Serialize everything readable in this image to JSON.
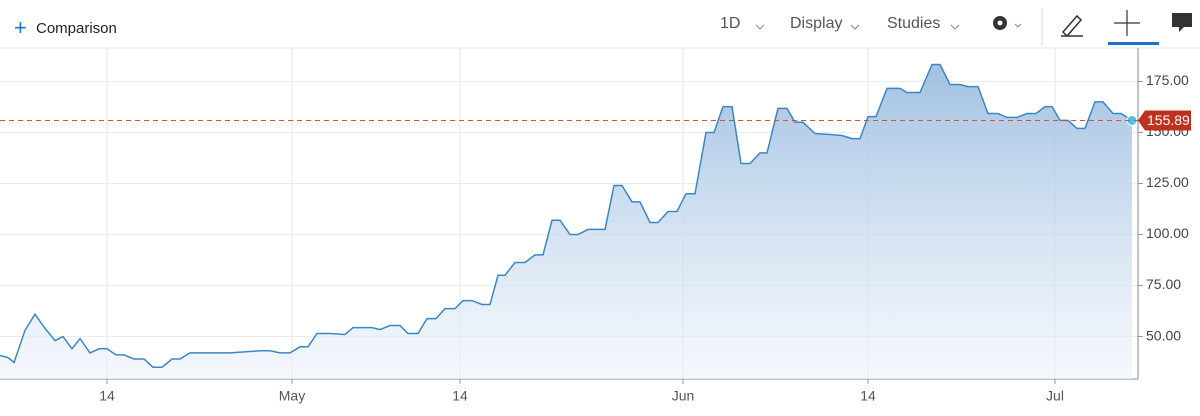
{
  "toolbar": {
    "comparison": "Comparison",
    "interval": "1D",
    "display": "Display",
    "studies": "Studies"
  },
  "chart_data": {
    "type": "line",
    "color": "#3a87c6",
    "area": true,
    "grid": true,
    "x": [
      0,
      0.8,
      1.4,
      2.5,
      3.5,
      4.5,
      5.5,
      6.3,
      7.2,
      8,
      9,
      9.9,
      10.7,
      11.6,
      12.4,
      13.4,
      14.4,
      15.3,
      16.2,
      17.2,
      18,
      19,
      23,
      26,
      27,
      28,
      29,
      30,
      30.8,
      31.7,
      33,
      34.5,
      35.3,
      37.2,
      38,
      39,
      40,
      40.8,
      41.8,
      42.7,
      43.6,
      44.5,
      45.5,
      46.3,
      47.2,
      48.2,
      49,
      49.8,
      50.5,
      51.5,
      52.5,
      53.5,
      54.3,
      55.2,
      56,
      57,
      57.8,
      58.8,
      60.5,
      61.4,
      62.2,
      63.2,
      64,
      65,
      65.8,
      66.8,
      67.7,
      68.6,
      69.5,
      70.6,
      71.4,
      72.3,
      73.2,
      74.1,
      75,
      76,
      76.7,
      77.8,
      78.7,
      79.5,
      80.3,
      81.5,
      83,
      84.2,
      85.2,
      86,
      86.8,
      87.6,
      88.7,
      90,
      90.7,
      92,
      93.2,
      94,
      95,
      96,
      96.8,
      97.8,
      98.8,
      99.8,
      100.7,
      101.7,
      102.7,
      103.6,
      104.5,
      105.2,
      106,
      106.8,
      107.7,
      108.5,
      109.5,
      110.3,
      111.3,
      112.1,
      113.2
    ],
    "values": [
      40.7,
      39.7,
      37.3,
      53,
      61,
      54,
      48,
      50,
      44,
      49,
      42,
      44,
      44,
      41,
      41,
      39,
      39,
      35,
      35,
      39,
      39,
      42,
      42,
      43,
      43,
      42,
      42,
      45,
      45,
      51.5,
      51.5,
      51,
      54.4,
      54.4,
      53.4,
      55.4,
      55.4,
      51.5,
      51.5,
      58.8,
      58.8,
      63.7,
      63.7,
      67.6,
      67.6,
      65.7,
      65.7,
      80,
      80,
      86.3,
      86.3,
      90,
      90,
      107,
      107,
      100,
      100,
      102.5,
      102.5,
      124,
      124,
      116,
      116,
      105.9,
      105.9,
      111.3,
      111.3,
      120,
      120,
      150,
      150,
      162.7,
      162.7,
      134.8,
      134.8,
      140,
      140,
      161.8,
      161.8,
      155,
      155,
      149.5,
      149,
      148.5,
      147,
      147,
      157.8,
      157.8,
      171.6,
      171.6,
      169.6,
      169.6,
      183.3,
      183.3,
      173.5,
      173.5,
      172.5,
      172.5,
      159.3,
      159.3,
      157.4,
      157.4,
      159.3,
      159.3,
      162.7,
      162.7,
      155.9,
      155.9,
      152,
      152,
      165,
      165,
      159.3,
      159.3,
      155.89
    ],
    "last_price": 155.89,
    "xlim": [
      0,
      113.8
    ],
    "xticks": [
      {
        "value": 10.7,
        "label": "14"
      },
      {
        "value": 29.2,
        "label": "May"
      },
      {
        "value": 46,
        "label": "14"
      },
      {
        "value": 68.3,
        "label": "Jun"
      },
      {
        "value": 86.8,
        "label": "14"
      },
      {
        "value": 105.5,
        "label": "Jul"
      }
    ],
    "ylim": [
      29.2,
      191.4
    ],
    "yticks": [
      {
        "value": 50,
        "label": "50.00"
      },
      {
        "value": 75,
        "label": "75.00"
      },
      {
        "value": 100,
        "label": "100.00"
      },
      {
        "value": 125,
        "label": "125.00"
      },
      {
        "value": 150,
        "label": "150.00"
      },
      {
        "value": 175,
        "label": "175.00"
      }
    ]
  }
}
